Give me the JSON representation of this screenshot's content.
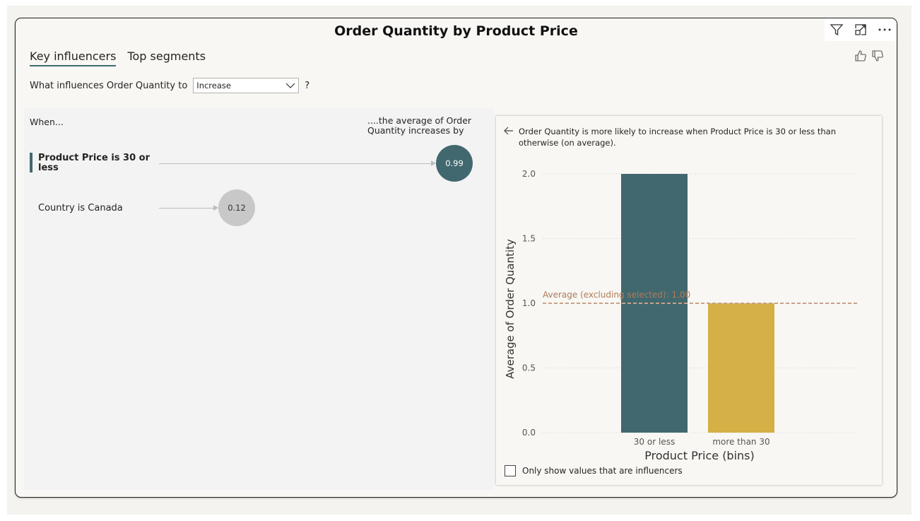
{
  "visual": {
    "title": "Order Quantity by Product Price",
    "header_icons": [
      "filter-icon",
      "focus-mode-icon",
      "more-options-icon"
    ]
  },
  "tabs": [
    {
      "label": "Key influencers",
      "active": true
    },
    {
      "label": "Top segments",
      "active": false
    }
  ],
  "question": {
    "prefix": "What influences Order Quantity to",
    "selected": "Increase",
    "suffix": "?"
  },
  "influencers": {
    "when_label": "When...",
    "avg_label": "....the average of Order Quantity increases by",
    "items": [
      {
        "label": "Product Price is 30 or less",
        "value": "0.99",
        "selected": true
      },
      {
        "label": "Country is Canada",
        "value": "0.12",
        "selected": false
      }
    ]
  },
  "detail": {
    "explanation": "Order Quantity is more likely to increase when Product Price is 30 or less than otherwise (on average).",
    "only_show_label": "Only show values that are influencers"
  },
  "colors": {
    "selected_bar": "#41686e",
    "other_bar": "#d4b046",
    "average_line": "#c9a288",
    "bubble_selected": "#41686e",
    "bubble_other": "#c8c8c8"
  },
  "chart_data": {
    "type": "bar",
    "categories": [
      "30 or less",
      "more than 30"
    ],
    "values": [
      2.0,
      1.0
    ],
    "xlabel": "Product Price (bins)",
    "ylabel": "Average of Order Quantity",
    "ylim": [
      0,
      2
    ],
    "yticks": [
      "0.0",
      "0.5",
      "1.0",
      "1.5",
      "2.0"
    ],
    "reference_line": {
      "value": 1.0,
      "label": "Average (excluding selected): 1.00"
    },
    "grid": true
  }
}
